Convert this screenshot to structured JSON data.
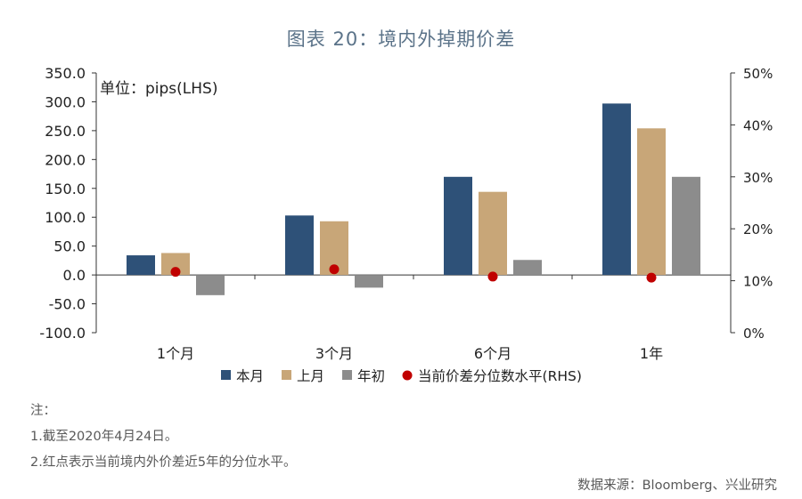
{
  "title": "图表 20：境内外掉期价差",
  "chart_data": {
    "type": "bar",
    "unit_label": "单位：pips(LHS)",
    "categories": [
      "1个月",
      "3个月",
      "6个月",
      "1年"
    ],
    "series": [
      {
        "name": "本月",
        "values": [
          34,
          103,
          170,
          297
        ],
        "color": "#2e5178"
      },
      {
        "name": "上月",
        "values": [
          38,
          93,
          144,
          254
        ],
        "color": "#c8a678"
      },
      {
        "name": "年初",
        "values": [
          -35,
          -22,
          26,
          170
        ],
        "color": "#8c8c8c"
      }
    ],
    "overlay": {
      "name": "当前价差分位数水平(RHS)",
      "type": "scatter",
      "axis": "right",
      "values": [
        0.117,
        0.122,
        0.108,
        0.106
      ],
      "color": "#c00000"
    },
    "y_left": {
      "min": -100,
      "max": 350,
      "ticks": [
        "-100.0",
        "-50.0",
        "0.0",
        "50.0",
        "100.0",
        "150.0",
        "200.0",
        "250.0",
        "300.0",
        "350.0"
      ]
    },
    "y_right": {
      "min": 0,
      "max": 0.5,
      "ticks": [
        "0%",
        "10%",
        "20%",
        "30%",
        "40%",
        "50%"
      ]
    },
    "grid": false,
    "legend_position": "bottom"
  },
  "notes": [
    "注：",
    "1.截至2020年4月24日。",
    "2.红点表示当前境内外价差近5年的分位水平。"
  ],
  "source": "数据来源：Bloomberg、兴业研究"
}
